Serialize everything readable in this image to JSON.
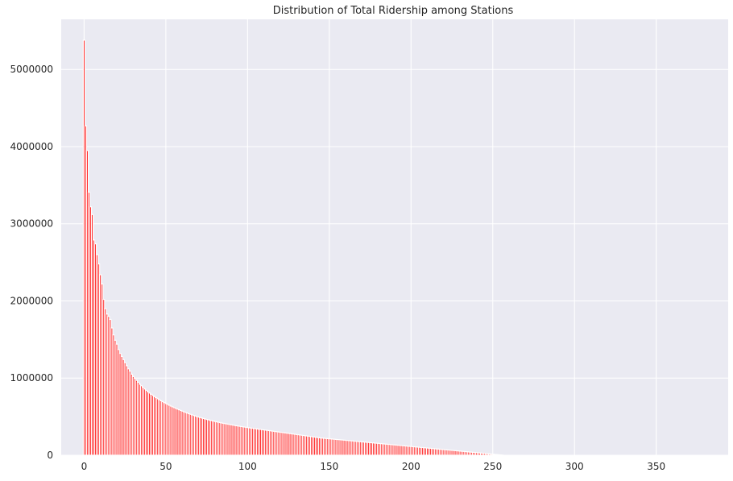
{
  "chart_data": {
    "type": "bar",
    "title": "Distribution of Total Ridership among Stations",
    "xlabel": "",
    "ylabel": "",
    "xlim": [
      -14,
      394
    ],
    "ylim": [
      0,
      5650000
    ],
    "xticks": [
      0,
      50,
      100,
      150,
      200,
      250,
      300,
      350
    ],
    "xtick_labels": [
      "0",
      "50",
      "100",
      "150",
      "200",
      "250",
      "300",
      "350"
    ],
    "yticks": [
      0,
      1000000,
      2000000,
      3000000,
      4000000,
      5000000
    ],
    "ytick_labels": [
      "0",
      "1000000",
      "2000000",
      "3000000",
      "4000000",
      "5000000"
    ],
    "grid": true,
    "bar_color": "#ff0000",
    "background_color": "#eaeaf2",
    "x_start": 0,
    "values": [
      5380000,
      4270000,
      3950000,
      3410000,
      3220000,
      3120000,
      2790000,
      2740000,
      2600000,
      2480000,
      2340000,
      2220000,
      2020000,
      1900000,
      1830000,
      1800000,
      1760000,
      1650000,
      1560000,
      1490000,
      1440000,
      1370000,
      1320000,
      1280000,
      1240000,
      1200000,
      1160000,
      1120000,
      1090000,
      1050000,
      1020000,
      995000,
      970000,
      945000,
      920000,
      900000,
      878000,
      858000,
      840000,
      822000,
      806000,
      790000,
      775000,
      760000,
      746000,
      732000,
      719000,
      706000,
      694000,
      682000,
      670000,
      659000,
      648000,
      637000,
      627000,
      617000,
      607000,
      598000,
      589000,
      580000,
      571000,
      562000,
      554000,
      546000,
      538000,
      530000,
      522000,
      515000,
      508000,
      501000,
      494000,
      488000,
      482000,
      476000,
      470000,
      464000,
      459000,
      453000,
      448000,
      443000,
      438000,
      433000,
      428000,
      423000,
      418000,
      414000,
      410000,
      406000,
      402000,
      398000,
      394000,
      390000,
      386000,
      382000,
      379000,
      375000,
      372000,
      368000,
      365000,
      362000,
      358000,
      355000,
      352000,
      349000,
      346000,
      343000,
      340000,
      337000,
      334000,
      331000,
      328000,
      325000,
      322000,
      319000,
      316000,
      313000,
      310000,
      307000,
      304000,
      301000,
      298000,
      295000,
      292000,
      289000,
      286000,
      283000,
      280000,
      277000,
      274000,
      271000,
      268000,
      265000,
      262000,
      259000,
      256000,
      253000,
      250000,
      247000,
      244000,
      241000,
      238000,
      235000,
      232000,
      229000,
      226000,
      223000,
      221000,
      219000,
      217000,
      215000,
      213000,
      211000,
      209000,
      207000,
      205000,
      203000,
      201000,
      199000,
      197000,
      195000,
      193000,
      191000,
      189000,
      187000,
      185000,
      183000,
      181000,
      179000,
      177000,
      175000,
      173000,
      171000,
      169000,
      167000,
      165000,
      163000,
      161000,
      159000,
      157000,
      155000,
      153000,
      151000,
      149000,
      147000,
      145000,
      143000,
      141000,
      139000,
      137000,
      135000,
      133000,
      131000,
      129000,
      127000,
      125000,
      123000,
      121000,
      119000,
      117000,
      115000,
      113000,
      111000,
      109000,
      107000,
      105000,
      103000,
      101000,
      99000,
      97000,
      95000,
      93000,
      91000,
      89000,
      87000,
      85000,
      83000,
      81000,
      79000,
      77000,
      75000,
      73000,
      71000,
      69000,
      67000,
      65000,
      63000,
      61000,
      59000,
      57000,
      55000,
      53000,
      51000,
      49000,
      47000,
      45000,
      43000,
      41000,
      39000,
      37000,
      35000,
      33000,
      31000,
      29000,
      27000,
      25000,
      23000,
      21000,
      19000,
      17000,
      15000,
      13000,
      11000,
      9000,
      7000,
      5000,
      3000,
      1000
    ]
  }
}
